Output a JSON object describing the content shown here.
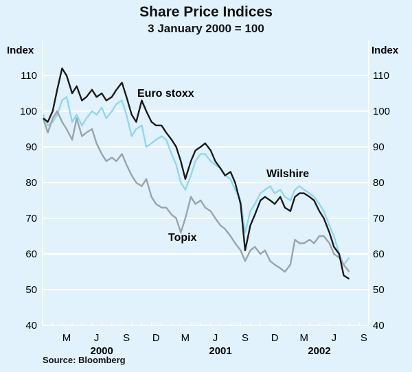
{
  "chart_data": {
    "type": "line",
    "title": "Share Price Indices",
    "subtitle": "3 January 2000 = 100",
    "ylabel_left": "Index",
    "ylabel_right": "Index",
    "ylim": [
      40,
      120
    ],
    "yticks": [
      40,
      50,
      60,
      70,
      80,
      90,
      100,
      110
    ],
    "xlim": [
      "2000-01-01",
      "2002-09-30"
    ],
    "x_month_ticks": [
      {
        "label": "M",
        "date": "2000-03-15"
      },
      {
        "label": "J",
        "date": "2000-06-15"
      },
      {
        "label": "S",
        "date": "2000-09-15"
      },
      {
        "label": "D",
        "date": "2000-12-15"
      },
      {
        "label": "M",
        "date": "2001-03-15"
      },
      {
        "label": "J",
        "date": "2001-06-15"
      },
      {
        "label": "S",
        "date": "2001-09-15"
      },
      {
        "label": "D",
        "date": "2001-12-15"
      },
      {
        "label": "M",
        "date": "2002-03-15"
      },
      {
        "label": "J",
        "date": "2002-06-15"
      },
      {
        "label": "S",
        "date": "2002-09-15"
      }
    ],
    "x_year_labels": [
      {
        "label": "2000",
        "date": "2000-07-01"
      },
      {
        "label": "2001",
        "date": "2001-07-01"
      },
      {
        "label": "2002",
        "date": "2002-05-01"
      }
    ],
    "grid": "horizontal",
    "dates": [
      "2000-01-03",
      "2000-01-17",
      "2000-02-01",
      "2000-02-15",
      "2000-03-01",
      "2000-03-15",
      "2000-04-01",
      "2000-04-15",
      "2000-05-01",
      "2000-05-15",
      "2000-06-01",
      "2000-06-15",
      "2000-07-01",
      "2000-07-15",
      "2000-08-01",
      "2000-08-15",
      "2000-09-01",
      "2000-09-15",
      "2000-10-01",
      "2000-10-15",
      "2000-11-01",
      "2000-11-15",
      "2000-12-01",
      "2000-12-15",
      "2001-01-01",
      "2001-01-15",
      "2001-02-01",
      "2001-02-15",
      "2001-03-01",
      "2001-03-15",
      "2001-04-01",
      "2001-04-15",
      "2001-05-01",
      "2001-05-15",
      "2001-06-01",
      "2001-06-15",
      "2001-07-01",
      "2001-07-15",
      "2001-08-01",
      "2001-08-15",
      "2001-09-01",
      "2001-09-15",
      "2001-10-01",
      "2001-10-15",
      "2001-11-01",
      "2001-11-15",
      "2001-12-01",
      "2001-12-15",
      "2002-01-01",
      "2002-01-15",
      "2002-02-01",
      "2002-02-15",
      "2002-03-01",
      "2002-03-15",
      "2002-04-01",
      "2002-04-15",
      "2002-05-01",
      "2002-05-15",
      "2002-06-01",
      "2002-06-15",
      "2002-07-01",
      "2002-07-15",
      "2002-08-01"
    ],
    "series": [
      {
        "name": "Wilshire",
        "color": "#8fd6f5",
        "values": [
          99,
          96,
          97,
          99,
          103,
          104,
          97,
          99,
          96,
          98,
          100,
          99,
          101,
          98,
          100,
          102,
          103,
          99,
          93,
          95,
          96,
          90,
          91,
          92,
          93,
          92,
          88,
          85,
          80,
          78,
          82,
          86,
          88,
          88,
          86,
          85,
          84,
          82,
          81,
          78,
          75,
          66,
          72,
          74,
          77,
          78,
          79,
          77,
          78,
          76,
          75,
          78,
          79,
          78,
          77,
          76,
          74,
          72,
          68,
          65,
          60,
          57,
          59
        ]
      },
      {
        "name": "Topix",
        "color": "#9ba3a8",
        "values": [
          98,
          94,
          98,
          100,
          97,
          95,
          92,
          98,
          93,
          94,
          95,
          91,
          88,
          86,
          87,
          86,
          88,
          85,
          82,
          80,
          79,
          81,
          76,
          74,
          73,
          73,
          71,
          70,
          66,
          70,
          76,
          74,
          75,
          73,
          72,
          70,
          68,
          67,
          65,
          63,
          61,
          58,
          61,
          62,
          60,
          61,
          58,
          57,
          56,
          55,
          57,
          64,
          63,
          63,
          64,
          63,
          65,
          65,
          63,
          60,
          59,
          57,
          55
        ]
      },
      {
        "name": "Euro stoxx",
        "color": "#1a1a1a",
        "values": [
          98,
          97,
          100,
          106,
          112,
          110,
          105,
          107,
          103,
          104,
          106,
          104,
          105,
          103,
          104,
          106,
          108,
          104,
          99,
          97,
          103,
          100,
          97,
          96,
          96,
          94,
          92,
          90,
          86,
          81,
          86,
          89,
          90,
          91,
          89,
          86,
          84,
          82,
          83,
          80,
          74,
          61,
          68,
          71,
          75,
          76,
          75,
          74,
          76,
          73,
          72,
          76,
          77,
          77,
          76,
          75,
          72,
          70,
          66,
          62,
          60,
          54,
          53
        ]
      }
    ],
    "annotations": [
      {
        "text": "Euro stoxx",
        "series": "Euro stoxx"
      },
      {
        "text": "Wilshire",
        "series": "Wilshire"
      },
      {
        "text": "Topix",
        "series": "Topix"
      }
    ],
    "source": "Source: Bloomberg"
  },
  "colors": {
    "background": "#e1f2fc",
    "grid": "#ffffff"
  }
}
